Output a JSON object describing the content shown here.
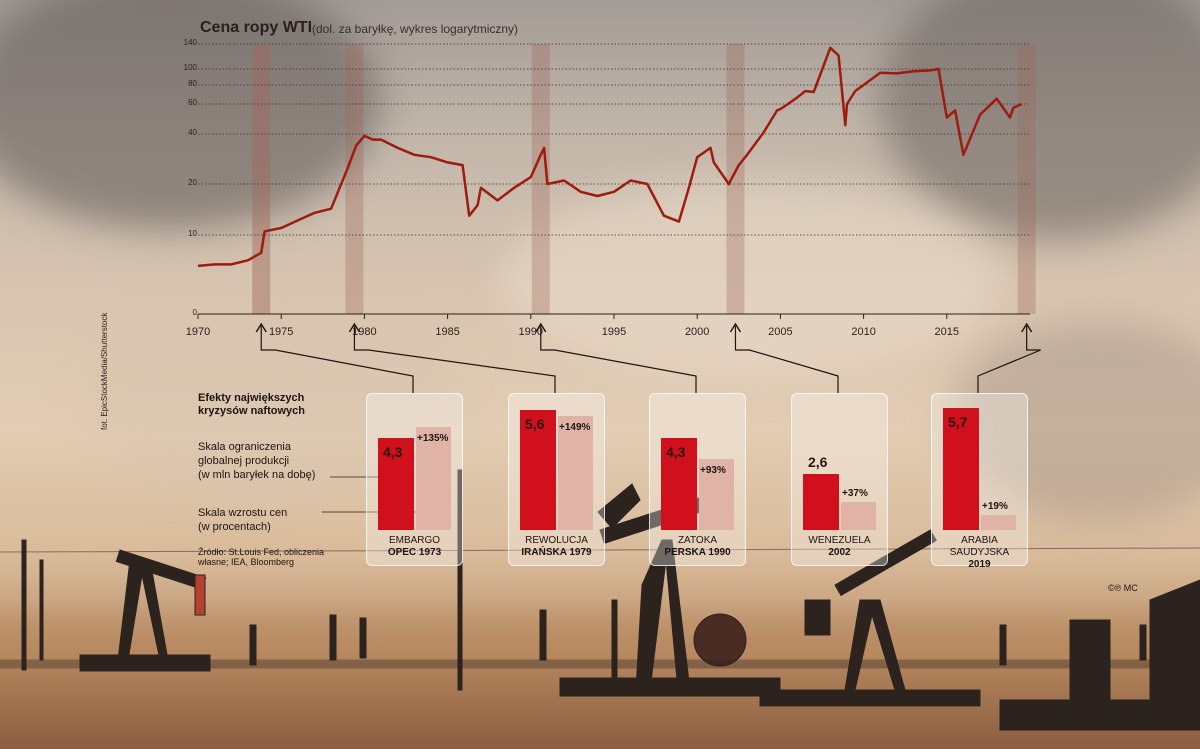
{
  "title": "Cena ropy WTI",
  "subtitle": "(dol. za baryłkę, wykres logarytmiczny)",
  "chart_data": [
    {
      "type": "line",
      "title": "Cena ropy WTI",
      "subtitle": "(dol. za baryłkę, wykres logarytmiczny)",
      "y_scale": "log",
      "y_ticks": [
        "140",
        "100",
        "80",
        "60",
        "40",
        "20",
        "10",
        "0"
      ],
      "x_ticks": [
        "1970",
        "1975",
        "1980",
        "1985",
        "1990",
        "1995",
        "2000",
        "2005",
        "2010",
        "2015"
      ],
      "grid": "horizontal dotted",
      "series": [
        {
          "x": [
            1970,
            1971,
            1972,
            1973,
            1973.8,
            1974,
            1975,
            1976,
            1977,
            1978,
            1979,
            1979.5,
            1980,
            1980.5,
            1981,
            1982,
            1983,
            1984,
            1985,
            1985.9,
            1986.3,
            1986.8,
            1987,
            1988,
            1989,
            1990,
            1990.6,
            1990.8,
            1991,
            1992,
            1993,
            1994,
            1995,
            1996,
            1997,
            1998,
            1998.9,
            1999.5,
            2000,
            2000.8,
            2001,
            2001.9,
            2002.5,
            2003,
            2004,
            2004.8,
            2005,
            2006,
            2006.5,
            2007,
            2008,
            2008.5,
            2008.9,
            2009,
            2009.5,
            2010,
            2011,
            2012,
            2013,
            2014,
            2014.5,
            2015,
            2015.5,
            2016,
            2017,
            2018,
            2018.8,
            2019,
            2019.5
          ],
          "y": [
            3.4,
            3.6,
            3.6,
            4.2,
            5.5,
            10.5,
            11,
            12.2,
            13.5,
            14.3,
            25,
            34,
            39,
            37,
            37,
            33,
            30,
            29,
            27,
            26,
            13,
            15,
            19,
            16,
            19,
            22,
            30,
            33,
            20,
            21,
            18,
            17,
            18,
            21,
            20,
            13,
            12,
            19,
            29,
            33,
            27,
            20,
            26,
            30,
            41,
            55,
            56,
            66,
            73,
            72,
            133,
            120,
            45,
            60,
            73,
            80,
            95,
            94,
            97,
            98,
            100,
            50,
            55,
            30,
            52,
            65,
            50,
            57,
            60
          ]
        }
      ],
      "crisis_years": [
        1973.8,
        1979.4,
        1990.6,
        2002.3,
        2019.8
      ]
    },
    {
      "type": "bar",
      "title": "Efekty największych kryzysów naftowych",
      "categories": [
        "EMBARGO OPEC 1973",
        "REWOLUCJA IRAŃSKA 1979",
        "ZATOKA PERSKA 1990",
        "WENEZUELA 2002",
        "ARABIA SAUDYJSKA 2019"
      ],
      "series": [
        {
          "name": "Skala ograniczenia globalnej produkcji (w mln baryłek na dobę)",
          "values": [
            4.3,
            5.6,
            4.3,
            2.6,
            5.7
          ]
        },
        {
          "name": "Skala wzrostu cen (w procentach)",
          "values": [
            135,
            149,
            93,
            37,
            19
          ]
        }
      ]
    }
  ],
  "panels": [
    {
      "value": "4,3",
      "pct": "+135%",
      "name": "EMBARGO",
      "year": "OPEC 1973"
    },
    {
      "value": "5,6",
      "pct": "+149%",
      "name": "REWOLUCJA",
      "year": "IRAŃSKA 1979"
    },
    {
      "value": "4,3",
      "pct": "+93%",
      "name": "ZATOKA",
      "year": "PERSKA 1990"
    },
    {
      "value": "2,6",
      "pct": "+37%",
      "name": "WENEZUELA",
      "year": "2002"
    },
    {
      "value": "5,7",
      "pct": "+19%",
      "name": "ARABIA SAUDYJSKA",
      "year": "2019"
    }
  ],
  "legend": {
    "title_line1": "Efekty największych",
    "title_line2": "kryzysów naftowych",
    "prod_line1": "Skala ograniczenia",
    "prod_line2": "globalnej produkcji",
    "prod_line3": "(w mln baryłek na dobę)",
    "price_line1": "Skala wzrostu cen",
    "price_line2": "(w procentach)"
  },
  "source": {
    "line1": "Źródło: St.Louis Fed, obliczenia",
    "line2": "własne; IEA, Bloomberg"
  },
  "credit": "fot. EpicStockMedia/Shutterstock",
  "copyright": "©℗ MC",
  "colors": {
    "line": "#9e1b0f",
    "red_bar": "#d1101d",
    "pink_bar": "#dfb4a6",
    "crisis_band": "#a0685a"
  }
}
